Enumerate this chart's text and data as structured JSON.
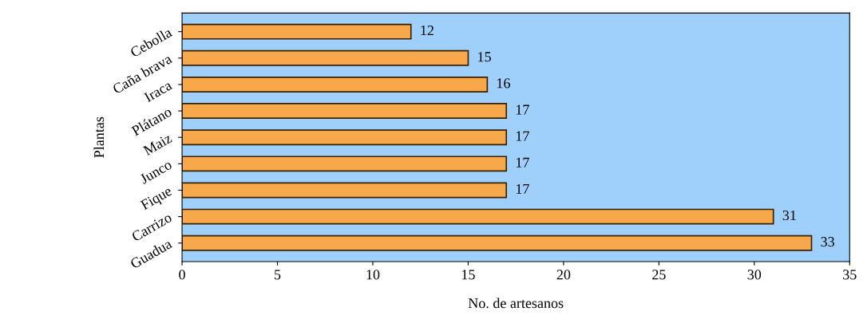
{
  "chart_data": {
    "type": "bar",
    "orientation": "horizontal",
    "xlabel": "No. de artesanos",
    "ylabel": "Plantas",
    "categories": [
      "Cebolla",
      "Caña brava",
      "Iraca",
      "Plátano",
      "Maiz",
      "Junco",
      "Fique",
      "Carrizo",
      "Guadua"
    ],
    "values": [
      12,
      15,
      16,
      17,
      17,
      17,
      17,
      31,
      33
    ],
    "color": "#f7a84a",
    "xlim": [
      0,
      35
    ],
    "xticks": [
      0,
      5,
      10,
      15,
      20,
      25,
      30,
      35
    ],
    "data_labels": true,
    "grid": false,
    "legend": false
  }
}
